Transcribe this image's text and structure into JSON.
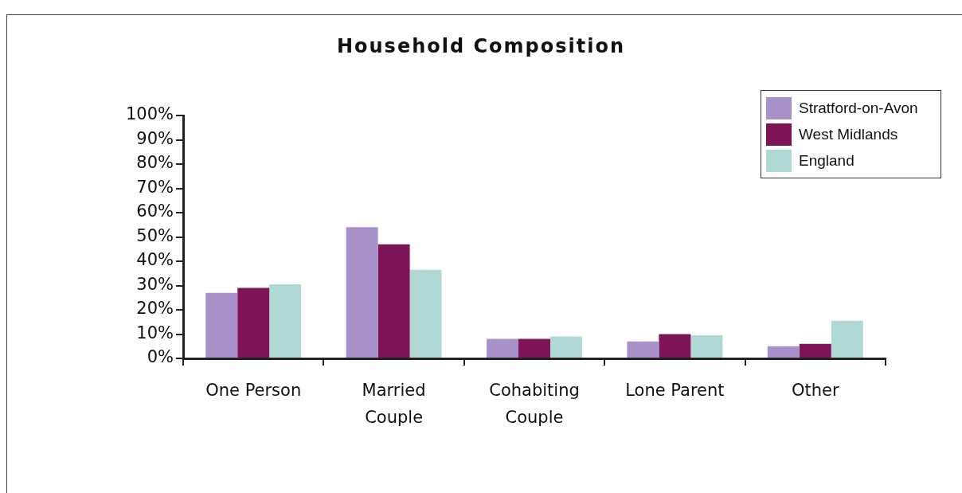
{
  "chart_data": {
    "type": "bar",
    "title": "Household Composition",
    "categories": [
      "One Person",
      "Married Couple",
      "Cohabiting Couple",
      "Lone Parent",
      "Other"
    ],
    "series": [
      {
        "name": "Stratford-on-Avon",
        "color": "#a791c8",
        "values": [
          27,
          54,
          8,
          7,
          5
        ]
      },
      {
        "name": "West Midlands",
        "color": "#7e1458",
        "values": [
          29,
          47,
          8,
          10,
          6
        ]
      },
      {
        "name": "England",
        "color": "#b0d9d6",
        "values": [
          30.5,
          36.5,
          9,
          9.5,
          15.5
        ]
      }
    ],
    "ylim": [
      0,
      100
    ],
    "yticks": [
      {
        "value": 0,
        "label": "0%"
      },
      {
        "value": 10,
        "label": "10%"
      },
      {
        "value": 20,
        "label": "20%"
      },
      {
        "value": 30,
        "label": "30%"
      },
      {
        "value": 40,
        "label": "40%"
      },
      {
        "value": 50,
        "label": "50%"
      },
      {
        "value": 60,
        "label": "60%"
      },
      {
        "value": 70,
        "label": "70%"
      },
      {
        "value": 80,
        "label": "80%"
      },
      {
        "value": 90,
        "label": "90%"
      },
      {
        "value": 100,
        "label": "100%"
      }
    ],
    "legend": "top right"
  }
}
